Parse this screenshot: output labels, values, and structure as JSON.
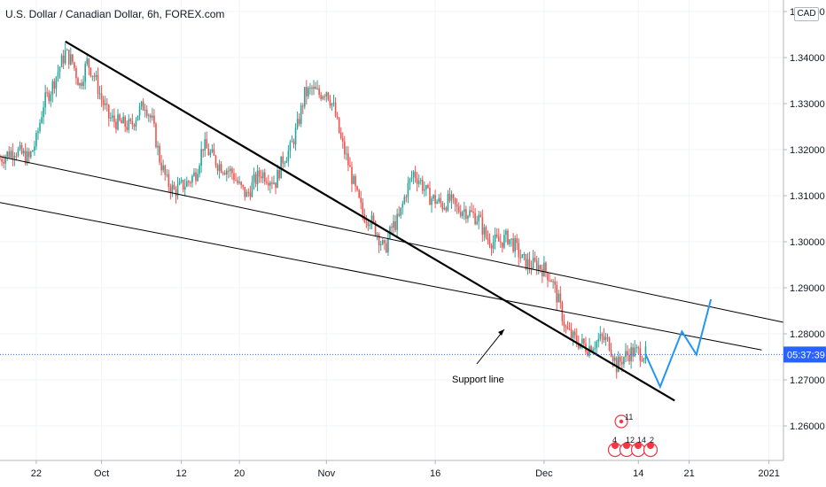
{
  "header": {
    "title": "U.S. Dollar / Canadian Dollar, 6h, FOREX.com",
    "currency": "CAD"
  },
  "price_tag": "05:37:39",
  "annotation": "Support line",
  "events": {
    "top_count": "11",
    "counts": [
      "4",
      "12",
      "14",
      "2"
    ]
  },
  "colors": {
    "up": "#26a69a",
    "down": "#ef5350",
    "projection": "#2196f3",
    "trendline": "#000000",
    "price_tag_bg": "#2962ff"
  },
  "chart_data": {
    "type": "candlestick",
    "title": "U.S. Dollar / Canadian Dollar, 6h, FOREX.com",
    "ylim": [
      1.2525,
      1.3525
    ],
    "y_ticks": [
      1.26,
      1.27,
      1.28,
      1.29,
      1.3,
      1.31,
      1.32,
      1.33,
      1.34,
      1.35
    ],
    "y_tick_labels": [
      "1.26000",
      "1.27000",
      "1.28000",
      "1.29000",
      "1.30000",
      "1.31000",
      "1.32000",
      "1.33000",
      "1.34000",
      "1.35000"
    ],
    "x_ticks": [
      "22",
      "Oct",
      "12",
      "20",
      "Nov",
      "16",
      "Dec",
      "14",
      "21",
      "2021"
    ],
    "x_tick_dates": [
      "2020-09-22",
      "2020-10-01",
      "2020-10-12",
      "2020-10-20",
      "2020-11-01",
      "2020-11-16",
      "2020-12-01",
      "2020-12-14",
      "2020-12-21",
      "2021-01-01"
    ],
    "xlim": [
      "2020-09-17",
      "2021-01-03"
    ],
    "current_price": 1.2755,
    "close_path": [
      [
        "2020-09-17",
        1.318
      ],
      [
        "2020-09-19",
        1.32
      ],
      [
        "2020-09-21",
        1.318
      ],
      [
        "2020-09-22",
        1.322
      ],
      [
        "2020-09-23",
        1.33
      ],
      [
        "2020-09-24",
        1.333
      ],
      [
        "2020-09-25",
        1.337
      ],
      [
        "2020-09-26",
        1.341
      ],
      [
        "2020-09-27",
        1.339
      ],
      [
        "2020-09-28",
        1.334
      ],
      [
        "2020-09-29",
        1.339
      ],
      [
        "2020-09-30",
        1.336
      ],
      [
        "2020-10-01",
        1.331
      ],
      [
        "2020-10-02",
        1.327
      ],
      [
        "2020-10-03",
        1.326
      ],
      [
        "2020-10-05",
        1.325
      ],
      [
        "2020-10-06",
        1.328
      ],
      [
        "2020-10-07",
        1.33
      ],
      [
        "2020-10-08",
        1.326
      ],
      [
        "2020-10-09",
        1.318
      ],
      [
        "2020-10-10",
        1.313
      ],
      [
        "2020-10-11",
        1.311
      ],
      [
        "2020-10-12",
        1.312
      ],
      [
        "2020-10-13",
        1.313
      ],
      [
        "2020-10-14",
        1.315
      ],
      [
        "2020-10-15",
        1.321
      ],
      [
        "2020-10-16",
        1.319
      ],
      [
        "2020-10-17",
        1.317
      ],
      [
        "2020-10-18",
        1.316
      ],
      [
        "2020-10-19",
        1.315
      ],
      [
        "2020-10-20",
        1.312
      ],
      [
        "2020-10-21",
        1.31
      ],
      [
        "2020-10-22",
        1.313
      ],
      [
        "2020-10-23",
        1.315
      ],
      [
        "2020-10-25",
        1.313
      ],
      [
        "2020-10-26",
        1.318
      ],
      [
        "2020-10-27",
        1.32
      ],
      [
        "2020-10-28",
        1.325
      ],
      [
        "2020-10-29",
        1.332
      ],
      [
        "2020-10-30",
        1.333
      ],
      [
        "2020-10-31",
        1.332
      ],
      [
        "2020-11-01",
        1.333
      ],
      [
        "2020-11-02",
        1.329
      ],
      [
        "2020-11-03",
        1.322
      ],
      [
        "2020-11-04",
        1.317
      ],
      [
        "2020-11-05",
        1.311
      ],
      [
        "2020-11-06",
        1.306
      ],
      [
        "2020-11-07",
        1.305
      ],
      [
        "2020-11-08",
        1.302
      ],
      [
        "2020-11-09",
        1.298
      ],
      [
        "2020-11-10",
        1.303
      ],
      [
        "2020-11-11",
        1.305
      ],
      [
        "2020-11-12",
        1.311
      ],
      [
        "2020-11-13",
        1.315
      ],
      [
        "2020-11-14",
        1.313
      ],
      [
        "2020-11-15",
        1.31
      ],
      [
        "2020-11-16",
        1.309
      ],
      [
        "2020-11-17",
        1.308
      ],
      [
        "2020-11-18",
        1.309
      ],
      [
        "2020-11-19",
        1.307
      ],
      [
        "2020-11-20",
        1.307
      ],
      [
        "2020-11-21",
        1.306
      ],
      [
        "2020-11-22",
        1.305
      ],
      [
        "2020-11-23",
        1.301
      ],
      [
        "2020-11-24",
        1.3
      ],
      [
        "2020-11-25",
        1.3
      ],
      [
        "2020-11-26",
        1.301
      ],
      [
        "2020-11-27",
        1.299
      ],
      [
        "2020-11-28",
        1.296
      ],
      [
        "2020-11-29",
        1.295
      ],
      [
        "2020-11-30",
        1.295
      ],
      [
        "2020-12-01",
        1.294
      ],
      [
        "2020-12-02",
        1.292
      ],
      [
        "2020-12-03",
        1.287
      ],
      [
        "2020-12-04",
        1.281
      ],
      [
        "2020-12-05",
        1.279
      ],
      [
        "2020-12-06",
        1.278
      ],
      [
        "2020-12-07",
        1.277
      ],
      [
        "2020-12-08",
        1.278
      ],
      [
        "2020-12-09",
        1.279
      ],
      [
        "2020-12-10",
        1.278
      ],
      [
        "2020-12-11",
        1.273
      ],
      [
        "2020-12-12",
        1.275
      ],
      [
        "2020-12-13",
        1.276
      ],
      [
        "2020-12-14",
        1.276
      ],
      [
        "2020-12-15",
        1.2755
      ]
    ],
    "trendlines": [
      {
        "points": [
          [
            "2020-09-26",
            1.3435
          ],
          [
            "2020-12-19",
            1.2655
          ]
        ],
        "color": "#000000",
        "width": 2.2
      },
      {
        "points": [
          [
            "2020-09-17",
            1.3185
          ],
          [
            "2021-01-03",
            1.2825
          ]
        ],
        "color": "#000000",
        "width": 1
      },
      {
        "points": [
          [
            "2020-09-17",
            1.3085
          ],
          [
            "2020-12-31",
            1.2765
          ]
        ],
        "color": "#000000",
        "width": 1
      }
    ],
    "projection": [
      [
        "2020-12-15",
        1.2755
      ],
      [
        "2020-12-17",
        1.2685
      ],
      [
        "2020-12-20",
        1.2805
      ],
      [
        "2020-12-22",
        1.2755
      ],
      [
        "2020-12-24",
        1.2875
      ]
    ]
  }
}
